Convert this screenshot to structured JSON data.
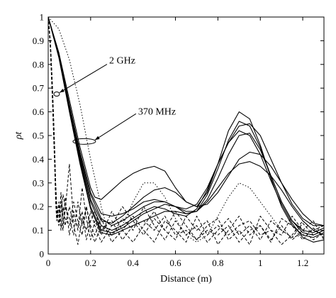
{
  "chart_data": {
    "type": "line",
    "title": "",
    "xlabel": "Distance (m)",
    "ylabel": "ρt",
    "xlim": [
      0,
      1.3
    ],
    "ylim": [
      0,
      1
    ],
    "x_ticks": [
      0,
      0.2,
      0.4,
      0.6,
      0.8,
      1,
      1.2
    ],
    "x_tick_labels": [
      "0",
      "0.2",
      "0.4",
      "0.6",
      "0.8",
      "1",
      "1.2"
    ],
    "y_ticks": [
      0,
      0.1,
      0.2,
      0.3,
      0.4,
      0.5,
      0.6,
      0.7,
      0.8,
      0.9,
      1
    ],
    "y_tick_labels": [
      "0",
      "0.1",
      "0.2",
      "0.3",
      "0.4",
      "0.5",
      "0.6",
      "0.7",
      "0.8",
      "0.9",
      "1"
    ],
    "grid": false,
    "annotations": [
      {
        "text": "2 GHz",
        "x": 0.04,
        "y": 0.675
      },
      {
        "text": "370 MHz",
        "x": 0.17,
        "y": 0.475
      }
    ],
    "series": [
      {
        "style": "solid",
        "x": [
          0,
          0.05,
          0.1,
          0.15,
          0.2,
          0.22,
          0.25,
          0.3,
          0.35,
          0.4,
          0.45,
          0.5,
          0.55,
          0.6,
          0.65,
          0.7,
          0.75,
          0.8,
          0.85,
          0.9,
          0.95,
          1,
          1.05,
          1.1,
          1.15,
          1.2,
          1.25,
          1.3
        ],
        "y": [
          1,
          0.85,
          0.65,
          0.45,
          0.28,
          0.24,
          0.23,
          0.27,
          0.31,
          0.34,
          0.36,
          0.37,
          0.35,
          0.28,
          0.22,
          0.2,
          0.26,
          0.38,
          0.52,
          0.6,
          0.57,
          0.46,
          0.32,
          0.2,
          0.12,
          0.08,
          0.07,
          0.09
        ]
      },
      {
        "style": "solid",
        "x": [
          0,
          0.05,
          0.1,
          0.15,
          0.2,
          0.25,
          0.3,
          0.35,
          0.4,
          0.45,
          0.5,
          0.55,
          0.6,
          0.65,
          0.7,
          0.75,
          0.8,
          0.85,
          0.9,
          0.95,
          1,
          1.05,
          1.1,
          1.15,
          1.2,
          1.25,
          1.3
        ],
        "y": [
          1,
          0.84,
          0.63,
          0.42,
          0.25,
          0.15,
          0.12,
          0.14,
          0.17,
          0.2,
          0.22,
          0.22,
          0.2,
          0.17,
          0.18,
          0.25,
          0.36,
          0.48,
          0.56,
          0.54,
          0.45,
          0.33,
          0.22,
          0.14,
          0.1,
          0.09,
          0.11
        ]
      },
      {
        "style": "solid",
        "x": [
          0,
          0.05,
          0.1,
          0.15,
          0.2,
          0.25,
          0.3,
          0.35,
          0.4,
          0.45,
          0.5,
          0.55,
          0.6,
          0.65,
          0.7,
          0.75,
          0.8,
          0.85,
          0.9,
          0.95,
          1,
          1.05,
          1.1,
          1.15,
          1.2,
          1.25,
          1.3
        ],
        "y": [
          1,
          0.84,
          0.62,
          0.4,
          0.22,
          0.12,
          0.1,
          0.12,
          0.15,
          0.18,
          0.2,
          0.19,
          0.17,
          0.16,
          0.19,
          0.27,
          0.38,
          0.47,
          0.52,
          0.5,
          0.42,
          0.31,
          0.21,
          0.13,
          0.07,
          0.05,
          0.06
        ]
      },
      {
        "style": "solid",
        "x": [
          0,
          0.05,
          0.1,
          0.15,
          0.2,
          0.25,
          0.3,
          0.35,
          0.4,
          0.45,
          0.5,
          0.55,
          0.6,
          0.65,
          0.7,
          0.75,
          0.8,
          0.85,
          0.9,
          0.95,
          1,
          1.05,
          1.1,
          1.15,
          1.2,
          1.25,
          1.3
        ],
        "y": [
          1,
          0.83,
          0.61,
          0.39,
          0.2,
          0.1,
          0.09,
          0.11,
          0.14,
          0.17,
          0.19,
          0.21,
          0.2,
          0.18,
          0.18,
          0.23,
          0.32,
          0.42,
          0.5,
          0.51,
          0.44,
          0.33,
          0.22,
          0.14,
          0.09,
          0.08,
          0.1
        ]
      },
      {
        "style": "solid",
        "x": [
          0,
          0.05,
          0.1,
          0.15,
          0.2,
          0.25,
          0.3,
          0.35,
          0.4,
          0.45,
          0.5,
          0.55,
          0.6,
          0.65,
          0.7,
          0.75,
          0.8,
          0.85,
          0.9,
          0.95,
          1,
          1.05,
          1.1,
          1.15,
          1.2,
          1.25,
          1.3
        ],
        "y": [
          1,
          0.84,
          0.62,
          0.41,
          0.23,
          0.14,
          0.13,
          0.16,
          0.2,
          0.24,
          0.27,
          0.28,
          0.26,
          0.22,
          0.2,
          0.21,
          0.26,
          0.33,
          0.4,
          0.43,
          0.42,
          0.37,
          0.3,
          0.23,
          0.17,
          0.13,
          0.12
        ]
      },
      {
        "style": "solid",
        "x": [
          0,
          0.05,
          0.1,
          0.15,
          0.2,
          0.25,
          0.3,
          0.35,
          0.4,
          0.45,
          0.5,
          0.55,
          0.6,
          0.65,
          0.7,
          0.75,
          0.8,
          0.85,
          0.9,
          0.95,
          1,
          1.05,
          1.1,
          1.15,
          1.2,
          1.25,
          1.3
        ],
        "y": [
          1,
          0.83,
          0.6,
          0.38,
          0.19,
          0.09,
          0.08,
          0.1,
          0.12,
          0.14,
          0.16,
          0.18,
          0.18,
          0.17,
          0.18,
          0.22,
          0.28,
          0.34,
          0.38,
          0.39,
          0.37,
          0.33,
          0.27,
          0.2,
          0.14,
          0.1,
          0.08
        ]
      },
      {
        "style": "solid",
        "x": [
          0,
          0.05,
          0.1,
          0.15,
          0.2,
          0.25,
          0.3,
          0.35,
          0.4,
          0.45,
          0.5,
          0.55,
          0.6,
          0.65,
          0.7,
          0.75,
          0.8,
          0.85,
          0.9,
          0.95,
          1,
          1.05,
          1.1,
          1.15,
          1.2,
          1.25,
          1.3
        ],
        "y": [
          1,
          0.84,
          0.63,
          0.43,
          0.26,
          0.17,
          0.16,
          0.17,
          0.19,
          0.22,
          0.23,
          0.22,
          0.2,
          0.19,
          0.21,
          0.28,
          0.38,
          0.47,
          0.54,
          0.55,
          0.5,
          0.4,
          0.3,
          0.21,
          0.15,
          0.12,
          0.12
        ]
      },
      {
        "style": "dotted",
        "x": [
          0,
          0.05,
          0.1,
          0.15,
          0.2,
          0.25,
          0.28,
          0.3,
          0.35,
          0.4,
          0.45,
          0.5,
          0.55,
          0.6,
          0.65,
          0.7,
          0.75,
          0.8,
          0.85,
          0.9,
          0.95,
          1,
          1.05,
          1.1,
          1.15,
          1.2,
          1.25,
          1.3
        ],
        "y": [
          1,
          0.95,
          0.82,
          0.63,
          0.4,
          0.2,
          0.1,
          0.08,
          0.12,
          0.22,
          0.3,
          0.3,
          0.24,
          0.15,
          0.08,
          0.05,
          0.08,
          0.16,
          0.24,
          0.3,
          0.28,
          0.22,
          0.16,
          0.1,
          0.07,
          0.08,
          0.1,
          0.12
        ]
      },
      {
        "style": "dashed",
        "x": [
          0,
          0.01,
          0.02,
          0.03,
          0.035,
          0.04,
          0.05,
          0.06,
          0.07,
          0.08,
          0.1,
          0.12,
          0.14,
          0.16,
          0.18,
          0.2,
          0.22,
          0.25,
          0.3,
          0.35,
          0.4,
          0.45,
          0.5,
          0.55,
          0.6,
          0.65,
          0.7,
          0.75,
          0.8,
          0.85,
          0.9,
          0.95,
          1,
          1.05,
          1.1,
          1.15,
          1.2,
          1.25,
          1.3
        ],
        "y": [
          1,
          0.9,
          0.7,
          0.45,
          0.3,
          0.2,
          0.12,
          0.18,
          0.25,
          0.2,
          0.15,
          0.08,
          0.22,
          0.12,
          0.2,
          0.1,
          0.05,
          0.12,
          0.08,
          0.15,
          0.1,
          0.2,
          0.12,
          0.06,
          0.14,
          0.08,
          0.12,
          0.05,
          0.1,
          0.15,
          0.08,
          0.12,
          0.06,
          0.14,
          0.1,
          0.07,
          0.13,
          0.08,
          0.1
        ]
      },
      {
        "style": "dashed",
        "x": [
          0,
          0.01,
          0.02,
          0.03,
          0.035,
          0.04,
          0.05,
          0.06,
          0.07,
          0.08,
          0.1,
          0.12,
          0.14,
          0.16,
          0.18,
          0.2,
          0.22,
          0.25,
          0.3,
          0.35,
          0.4,
          0.45,
          0.5,
          0.55,
          0.6,
          0.65,
          0.7,
          0.75,
          0.8,
          0.85,
          0.9,
          0.95,
          1,
          1.05,
          1.1,
          1.15,
          1.2,
          1.25,
          1.3
        ],
        "y": [
          1,
          0.88,
          0.66,
          0.4,
          0.25,
          0.15,
          0.22,
          0.14,
          0.1,
          0.24,
          0.08,
          0.18,
          0.1,
          0.28,
          0.15,
          0.06,
          0.14,
          0.08,
          0.18,
          0.1,
          0.05,
          0.12,
          0.18,
          0.1,
          0.06,
          0.16,
          0.1,
          0.14,
          0.04,
          0.1,
          0.16,
          0.08,
          0.12,
          0.05,
          0.15,
          0.12,
          0.06,
          0.11,
          0.07
        ]
      },
      {
        "style": "dashed",
        "x": [
          0,
          0.01,
          0.02,
          0.03,
          0.035,
          0.04,
          0.05,
          0.06,
          0.07,
          0.08,
          0.1,
          0.12,
          0.14,
          0.16,
          0.18,
          0.2,
          0.22,
          0.25,
          0.3,
          0.35,
          0.4,
          0.45,
          0.5,
          0.55,
          0.6,
          0.65,
          0.7,
          0.75,
          0.8,
          0.85,
          0.9,
          0.95,
          1,
          1.05,
          1.1,
          1.15,
          1.2,
          1.25,
          1.3
        ],
        "y": [
          1,
          0.89,
          0.68,
          0.42,
          0.28,
          0.18,
          0.12,
          0.26,
          0.16,
          0.12,
          0.2,
          0.12,
          0.04,
          0.15,
          0.1,
          0.18,
          0.12,
          0.05,
          0.12,
          0.2,
          0.14,
          0.08,
          0.15,
          0.1,
          0.18,
          0.12,
          0.06,
          0.12,
          0.15,
          0.06,
          0.1,
          0.04,
          0.16,
          0.1,
          0.08,
          0.16,
          0.1,
          0.06,
          0.09
        ]
      },
      {
        "style": "dashed",
        "x": [
          0,
          0.01,
          0.02,
          0.03,
          0.035,
          0.04,
          0.05,
          0.06,
          0.07,
          0.08,
          0.1,
          0.12,
          0.14,
          0.16,
          0.18,
          0.2,
          0.22,
          0.25,
          0.3,
          0.35,
          0.4,
          0.45,
          0.5,
          0.55,
          0.6,
          0.65,
          0.7,
          0.75,
          0.8,
          0.85,
          0.9,
          0.95,
          1,
          1.05,
          1.1,
          1.15,
          1.2,
          1.25,
          1.3
        ],
        "y": [
          1,
          0.87,
          0.64,
          0.38,
          0.22,
          0.14,
          0.2,
          0.1,
          0.2,
          0.15,
          0.12,
          0.22,
          0.14,
          0.08,
          0.2,
          0.12,
          0.08,
          0.15,
          0.05,
          0.1,
          0.16,
          0.1,
          0.05,
          0.14,
          0.1,
          0.05,
          0.16,
          0.08,
          0.12,
          0.08,
          0.12,
          0.14,
          0.08,
          0.1,
          0.04,
          0.08,
          0.14,
          0.1,
          0.12
        ]
      },
      {
        "style": "dashed",
        "x": [
          0,
          0.01,
          0.02,
          0.03,
          0.035,
          0.04,
          0.05,
          0.06,
          0.07,
          0.08,
          0.1,
          0.12,
          0.14,
          0.16,
          0.18,
          0.2,
          0.22,
          0.25,
          0.3,
          0.35,
          0.4,
          0.45,
          0.5,
          0.55,
          0.6,
          0.65,
          0.7,
          0.75,
          0.8,
          0.85,
          0.9,
          0.95,
          1,
          1.05,
          1.1,
          1.15,
          1.2,
          1.25,
          1.3
        ],
        "y": [
          1,
          0.9,
          0.71,
          0.46,
          0.3,
          0.2,
          0.16,
          0.22,
          0.12,
          0.18,
          0.38,
          0.14,
          0.12,
          0.18,
          0.06,
          0.14,
          0.18,
          0.1,
          0.14,
          0.06,
          0.12,
          0.14,
          0.1,
          0.16,
          0.08,
          0.1,
          0.06,
          0.1,
          0.08,
          0.12,
          0.05,
          0.1,
          0.12,
          0.06,
          0.12,
          0.06,
          0.1,
          0.14,
          0.06
        ]
      }
    ]
  }
}
